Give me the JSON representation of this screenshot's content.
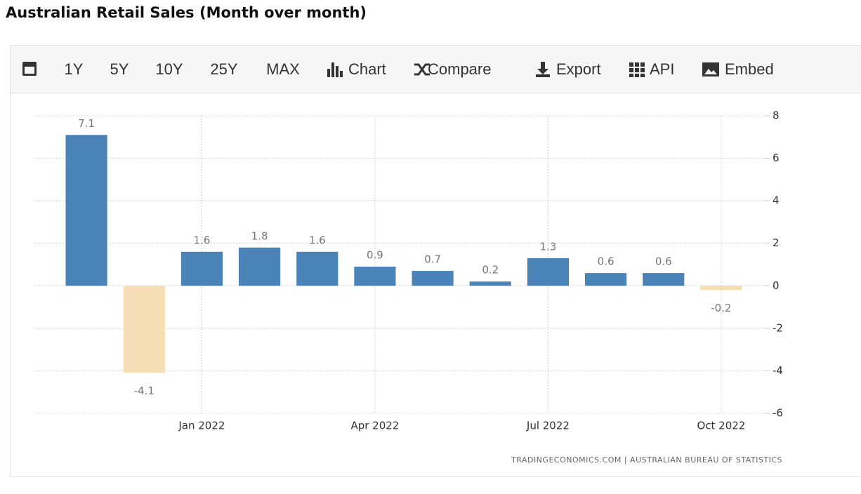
{
  "title": "Australian Retail Sales (Month over month)",
  "toolbar": {
    "buttons": [
      "1Y",
      "5Y",
      "10Y",
      "25Y",
      "MAX",
      "Chart",
      "Compare",
      "Export",
      "API",
      "Embed"
    ]
  },
  "source": "TRADINGECONOMICS.COM | AUSTRALIAN BUREAU OF STATISTICS",
  "chart_data": {
    "type": "bar",
    "categories": [
      null,
      null,
      "Jan 2022",
      null,
      null,
      "Apr 2022",
      null,
      null,
      "Jul 2022",
      null,
      null,
      "Oct 2022"
    ],
    "values": [
      7.1,
      -4.1,
      1.6,
      1.8,
      1.6,
      0.9,
      0.7,
      0.2,
      1.3,
      0.6,
      0.6,
      -0.2
    ],
    "color": "#4a83b8",
    "negative_color": "#f5deb3",
    "ylim": [
      -6,
      8
    ],
    "yticks": [
      -6,
      -4,
      -2,
      0,
      2,
      4,
      6,
      8
    ],
    "grid": true,
    "y_axis_side": "right"
  }
}
